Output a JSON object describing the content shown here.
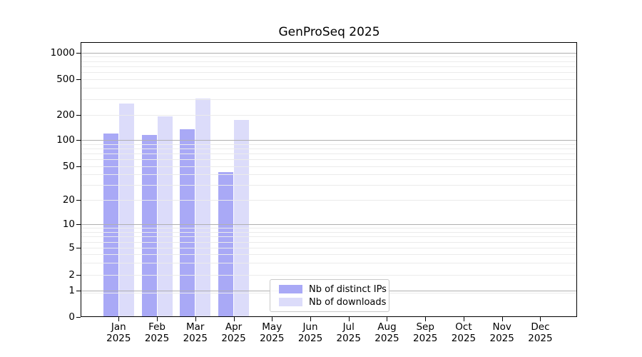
{
  "chart_data": {
    "type": "bar",
    "title": "GenProSeq 2025",
    "categories": [
      "Jan",
      "Feb",
      "Mar",
      "Apr",
      "May",
      "Jun",
      "Jul",
      "Aug",
      "Sep",
      "Oct",
      "Nov",
      "Dec"
    ],
    "x_tick_year_line": "2025",
    "series": [
      {
        "name": "Nb of distinct IPs",
        "color": "#a9a9f6",
        "values": [
          120,
          115,
          135,
          43,
          null,
          null,
          null,
          null,
          null,
          null,
          null,
          null
        ]
      },
      {
        "name": "Nb of downloads",
        "color": "#dcdcfa",
        "values": [
          270,
          193,
          305,
          175,
          null,
          null,
          null,
          null,
          null,
          null,
          null,
          null
        ]
      }
    ],
    "yscale": "symlog",
    "ytick_values": [
      0,
      1,
      2,
      5,
      10,
      20,
      50,
      100,
      200,
      500,
      1000
    ],
    "ytick_labels": [
      "0",
      "1",
      "2",
      "5",
      "10",
      "20",
      "50",
      "100",
      "200",
      "500",
      "1000"
    ],
    "ylim": [
      0,
      1400
    ],
    "grid": true,
    "legend_position": "lower center"
  },
  "colors": {
    "distinct_ips_bar": "#a9a9f6",
    "downloads_bar": "#dcdcfa",
    "major_gridline": "#b0b0b0",
    "minor_gridline": "#ebebeb",
    "axis": "#000000"
  }
}
